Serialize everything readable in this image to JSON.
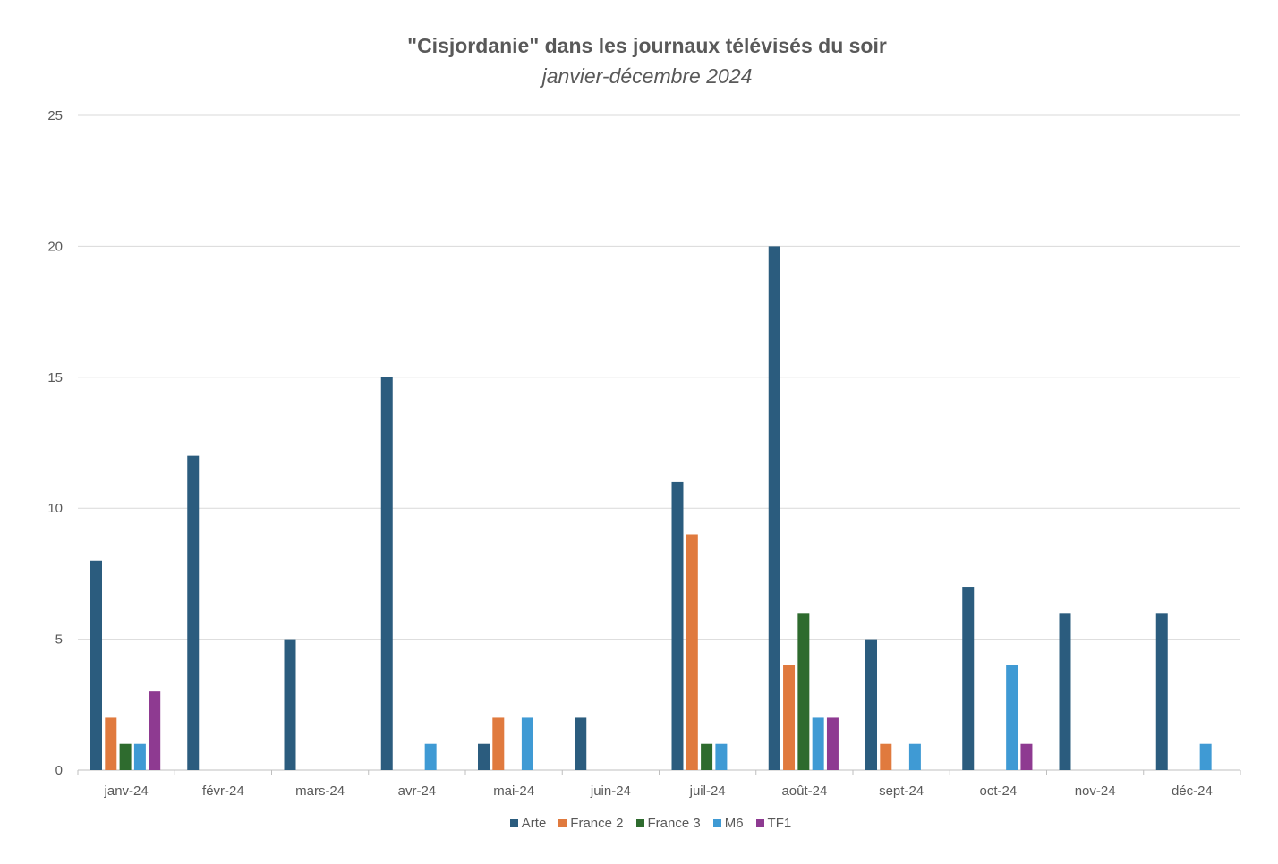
{
  "chart_data": {
    "type": "bar",
    "title": "\"Cisjordanie\" dans les journaux télévisés du soir",
    "subtitle": "janvier-décembre 2024",
    "xlabel": "",
    "ylabel": "",
    "ylim": [
      0,
      25
    ],
    "yticks": [
      0,
      5,
      10,
      15,
      20,
      25
    ],
    "grid": true,
    "legend_position": "bottom",
    "categories": [
      "janv-24",
      "févr-24",
      "mars-24",
      "avr-24",
      "mai-24",
      "juin-24",
      "juil-24",
      "août-24",
      "sept-24",
      "oct-24",
      "nov-24",
      "déc-24"
    ],
    "series": [
      {
        "name": "Arte",
        "color": "#2b5c7e",
        "values": [
          8,
          12,
          5,
          15,
          1,
          2,
          11,
          20,
          5,
          7,
          6,
          6
        ]
      },
      {
        "name": "France 2",
        "color": "#e07a3e",
        "values": [
          2,
          0,
          0,
          0,
          2,
          0,
          9,
          4,
          1,
          0,
          0,
          0
        ]
      },
      {
        "name": "France 3",
        "color": "#2e6b2e",
        "values": [
          1,
          0,
          0,
          0,
          0,
          0,
          1,
          6,
          0,
          0,
          0,
          0
        ]
      },
      {
        "name": "M6",
        "color": "#3f9ad4",
        "values": [
          1,
          0,
          0,
          1,
          2,
          0,
          1,
          2,
          1,
          4,
          0,
          1
        ]
      },
      {
        "name": "TF1",
        "color": "#8e3a91",
        "values": [
          3,
          0,
          0,
          0,
          0,
          0,
          0,
          2,
          0,
          1,
          0,
          0
        ]
      }
    ]
  }
}
